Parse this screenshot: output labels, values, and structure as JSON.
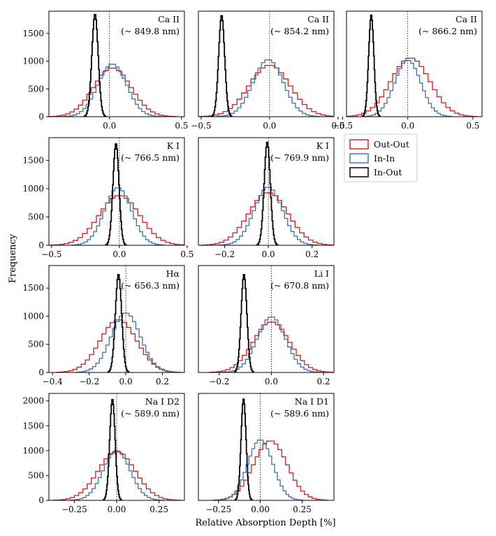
{
  "figure": {
    "ylabel": "Frequency",
    "xlabel": "Relative Absorption Depth [%]"
  },
  "legend": {
    "placement": "right of row 2",
    "entries": [
      {
        "label": "Out-Out",
        "color": "#d62728"
      },
      {
        "label": "In-In",
        "color": "#4a78b0"
      },
      {
        "label": "In-Out",
        "color": "#000000"
      }
    ]
  },
  "chart_data": [
    {
      "type": "histogram",
      "title_line1": "Ca II",
      "title_line2": "(~ 849.8 nm)",
      "xlim": [
        -0.42,
        0.52
      ],
      "ylim": [
        0,
        1900
      ],
      "xticks": [
        {
          "v": 0.0,
          "t": "0.0"
        },
        {
          "v": 0.5,
          "t": "0.5"
        }
      ],
      "yticks": [
        {
          "v": 0,
          "t": "0"
        },
        {
          "v": 500,
          "t": "500"
        },
        {
          "v": 1000,
          "t": "1000"
        },
        {
          "v": 1500,
          "t": "1500"
        }
      ],
      "vline": 0.0,
      "series": [
        {
          "name": "Out-Out",
          "color": "#d62728",
          "mean": 0.02,
          "sd": 0.13,
          "peak": 880
        },
        {
          "name": "In-In",
          "color": "#4a78b0",
          "mean": 0.02,
          "sd": 0.1,
          "peak": 950
        },
        {
          "name": "In-Out",
          "color": "#000000",
          "mean": -0.1,
          "sd": 0.022,
          "peak": 1850
        }
      ]
    },
    {
      "type": "histogram",
      "title_line1": "Ca II",
      "title_line2": "(~ 854.2 nm)",
      "xlim": [
        -0.52,
        0.47
      ],
      "ylim": [
        0,
        1900
      ],
      "xticks": [
        {
          "v": -0.5,
          "t": "-0.5"
        },
        {
          "v": 0.0,
          "t": "0.0"
        },
        {
          "v": 0.5,
          "t": "0.5"
        }
      ],
      "yticks": [],
      "vline": 0.0,
      "series": [
        {
          "name": "Out-Out",
          "color": "#d62728",
          "mean": 0.0,
          "sd": 0.15,
          "peak": 930
        },
        {
          "name": "In-In",
          "color": "#4a78b0",
          "mean": -0.01,
          "sd": 0.11,
          "peak": 1030
        },
        {
          "name": "In-Out",
          "color": "#000000",
          "mean": -0.35,
          "sd": 0.022,
          "peak": 1830
        }
      ]
    },
    {
      "type": "histogram",
      "title_line1": "Ca II",
      "title_line2": "(~ 866.2 nm)",
      "xlim": [
        -0.47,
        0.57
      ],
      "ylim": [
        0,
        1900
      ],
      "xticks": [
        {
          "v": -0.5,
          "t": "-0.5"
        },
        {
          "v": 0.0,
          "t": "0.0"
        },
        {
          "v": 0.5,
          "t": "0.5"
        }
      ],
      "yticks": [],
      "vline": 0.0,
      "series": [
        {
          "name": "Out-Out",
          "color": "#d62728",
          "mean": 0.02,
          "sd": 0.15,
          "peak": 1060
        },
        {
          "name": "In-In",
          "color": "#4a78b0",
          "mean": 0.0,
          "sd": 0.1,
          "peak": 1020
        },
        {
          "name": "In-Out",
          "color": "#000000",
          "mean": -0.28,
          "sd": 0.02,
          "peak": 1840
        }
      ]
    },
    {
      "type": "histogram",
      "title_line1": "K I",
      "title_line2": "(~ 766.5 nm)",
      "xlim": [
        -0.52,
        0.48
      ],
      "ylim": [
        0,
        1900
      ],
      "xticks": [
        {
          "v": -0.5,
          "t": "-0.5"
        },
        {
          "v": 0.0,
          "t": "0.0"
        },
        {
          "v": 0.5,
          "t": "0.5"
        }
      ],
      "yticks": [
        {
          "v": 0,
          "t": "0"
        },
        {
          "v": 500,
          "t": "500"
        },
        {
          "v": 1000,
          "t": "1000"
        },
        {
          "v": 1500,
          "t": "1500"
        }
      ],
      "vline": 0.0,
      "series": [
        {
          "name": "Out-Out",
          "color": "#d62728",
          "mean": 0.0,
          "sd": 0.15,
          "peak": 880
        },
        {
          "name": "In-In",
          "color": "#4a78b0",
          "mean": -0.01,
          "sd": 0.1,
          "peak": 1020
        },
        {
          "name": "In-Out",
          "color": "#000000",
          "mean": -0.025,
          "sd": 0.022,
          "peak": 1800
        }
      ]
    },
    {
      "type": "histogram",
      "title_line1": "K I",
      "title_line2": "(~ 769.9 nm)",
      "xlim": [
        -0.32,
        0.3
      ],
      "ylim": [
        0,
        1900
      ],
      "xticks": [
        {
          "v": -0.2,
          "t": "-0.2"
        },
        {
          "v": 0.0,
          "t": "0.0"
        },
        {
          "v": 0.2,
          "t": "0.2"
        }
      ],
      "yticks": [],
      "vline": 0.0,
      "series": [
        {
          "name": "Out-Out",
          "color": "#d62728",
          "mean": 0.0,
          "sd": 0.09,
          "peak": 930
        },
        {
          "name": "In-In",
          "color": "#4a78b0",
          "mean": 0.0,
          "sd": 0.065,
          "peak": 1030
        },
        {
          "name": "In-Out",
          "color": "#000000",
          "mean": -0.005,
          "sd": 0.014,
          "peak": 1830
        }
      ]
    },
    {
      "type": "histogram",
      "title_line1": "Hα",
      "title_line2": "(~ 656.3 nm)",
      "xlim": [
        -0.42,
        0.32
      ],
      "ylim": [
        0,
        1900
      ],
      "xticks": [
        {
          "v": -0.4,
          "t": "-0.4"
        },
        {
          "v": -0.2,
          "t": "-0.2"
        },
        {
          "v": 0.0,
          "t": "0.0"
        },
        {
          "v": 0.2,
          "t": "0.2"
        }
      ],
      "yticks": [
        {
          "v": 0,
          "t": "0"
        },
        {
          "v": 500,
          "t": "500"
        },
        {
          "v": 1000,
          "t": "1000"
        },
        {
          "v": 1500,
          "t": "1500"
        }
      ],
      "vline": 0.0,
      "series": [
        {
          "name": "Out-Out",
          "color": "#d62728",
          "mean": -0.04,
          "sd": 0.1,
          "peak": 940
        },
        {
          "name": "In-In",
          "color": "#4a78b0",
          "mean": 0.0,
          "sd": 0.08,
          "peak": 1060
        },
        {
          "name": "In-Out",
          "color": "#000000",
          "mean": -0.04,
          "sd": 0.017,
          "peak": 1750
        }
      ]
    },
    {
      "type": "histogram",
      "title_line1": "Li I",
      "title_line2": "(~ 670.8 nm)",
      "xlim": [
        -0.28,
        0.24
      ],
      "ylim": [
        0,
        1900
      ],
      "xticks": [
        {
          "v": -0.2,
          "t": "-0.2"
        },
        {
          "v": 0.0,
          "t": "0.0"
        },
        {
          "v": 0.2,
          "t": "0.2"
        }
      ],
      "yticks": [],
      "vline": 0.0,
      "series": [
        {
          "name": "Out-Out",
          "color": "#d62728",
          "mean": 0.0,
          "sd": 0.07,
          "peak": 900
        },
        {
          "name": "In-In",
          "color": "#4a78b0",
          "mean": 0.0,
          "sd": 0.055,
          "peak": 990
        },
        {
          "name": "In-Out",
          "color": "#000000",
          "mean": -0.105,
          "sd": 0.011,
          "peak": 1750
        }
      ]
    },
    {
      "type": "histogram",
      "title_line1": "Na I D2",
      "title_line2": "(~ 589.0 nm)",
      "xlim": [
        -0.4,
        0.4
      ],
      "ylim": [
        0,
        2150
      ],
      "xticks": [
        {
          "v": -0.25,
          "t": "-0.25"
        },
        {
          "v": 0.0,
          "t": "0.00"
        },
        {
          "v": 0.25,
          "t": "0.25"
        }
      ],
      "yticks": [
        {
          "v": 0,
          "t": "0"
        },
        {
          "v": 500,
          "t": "500"
        },
        {
          "v": 1000,
          "t": "1000"
        },
        {
          "v": 1500,
          "t": "1500"
        },
        {
          "v": 2000,
          "t": "2000"
        }
      ],
      "vline": 0.0,
      "series": [
        {
          "name": "Out-Out",
          "color": "#d62728",
          "mean": 0.0,
          "sd": 0.11,
          "peak": 980
        },
        {
          "name": "In-In",
          "color": "#4a78b0",
          "mean": 0.0,
          "sd": 0.08,
          "peak": 1000
        },
        {
          "name": "In-Out",
          "color": "#000000",
          "mean": -0.025,
          "sd": 0.016,
          "peak": 2040
        }
      ]
    },
    {
      "type": "histogram",
      "title_line1": "Na I D1",
      "title_line2": "(~ 589.6 nm)",
      "xlim": [
        -0.37,
        0.44
      ],
      "ylim": [
        0,
        2150
      ],
      "xticks": [
        {
          "v": -0.25,
          "t": "-0.25"
        },
        {
          "v": 0.0,
          "t": "0.00"
        },
        {
          "v": 0.25,
          "t": "0.25"
        }
      ],
      "yticks": [],
      "vline": 0.0,
      "series": [
        {
          "name": "Out-Out",
          "color": "#d62728",
          "mean": 0.06,
          "sd": 0.1,
          "peak": 1200
        },
        {
          "name": "In-In",
          "color": "#4a78b0",
          "mean": 0.0,
          "sd": 0.075,
          "peak": 1220
        },
        {
          "name": "In-Out",
          "color": "#000000",
          "mean": -0.1,
          "sd": 0.015,
          "peak": 2050
        }
      ]
    }
  ]
}
